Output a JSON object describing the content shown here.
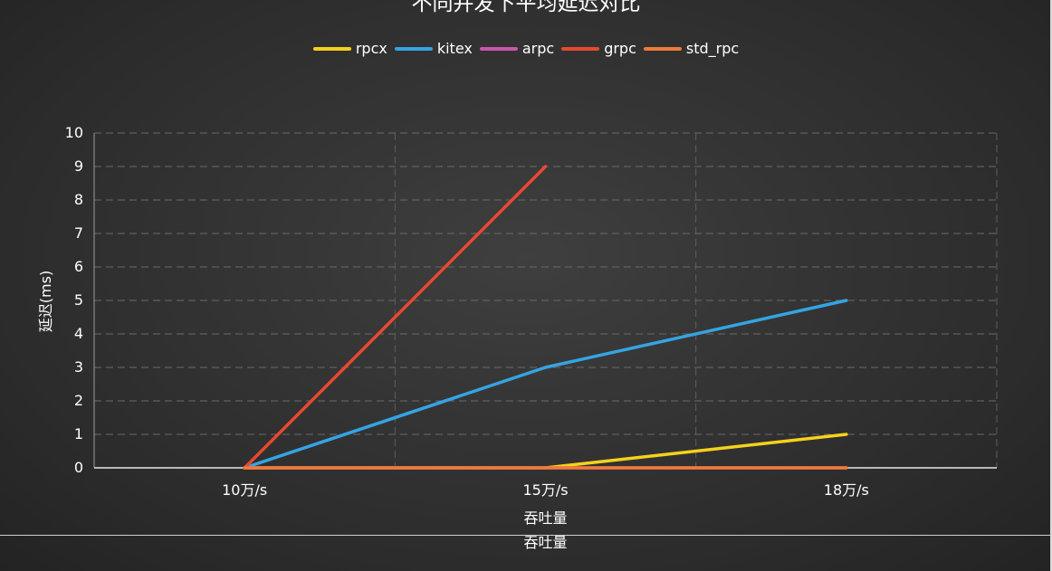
{
  "chart_data": {
    "type": "line",
    "title": "不同并发下平均延迟对比",
    "xlabel": "吞吐量",
    "ylabel": "延迟(ms)",
    "categories": [
      "10万/s",
      "15万/s",
      "18万/s"
    ],
    "ylim": [
      0,
      10
    ],
    "yticks": [
      "0",
      "1",
      "2",
      "3",
      "4",
      "5",
      "6",
      "7",
      "8",
      "9",
      "10"
    ],
    "grid": true,
    "legend_position": "top",
    "series": [
      {
        "name": "rpcx",
        "color": "#f5d21b",
        "values": [
          0,
          0,
          1
        ]
      },
      {
        "name": "kitex",
        "color": "#35a4e2",
        "values": [
          0,
          3,
          5
        ]
      },
      {
        "name": "arpc",
        "color": "#cc55aa",
        "values": [
          0,
          0,
          0
        ]
      },
      {
        "name": "grpc",
        "color": "#e64a2e",
        "values": [
          0,
          9,
          null
        ]
      },
      {
        "name": "std_rpc",
        "color": "#ef7a3a",
        "values": [
          0,
          0,
          0
        ]
      }
    ]
  },
  "footer": {
    "repeated_xlabel": "吞吐量"
  }
}
